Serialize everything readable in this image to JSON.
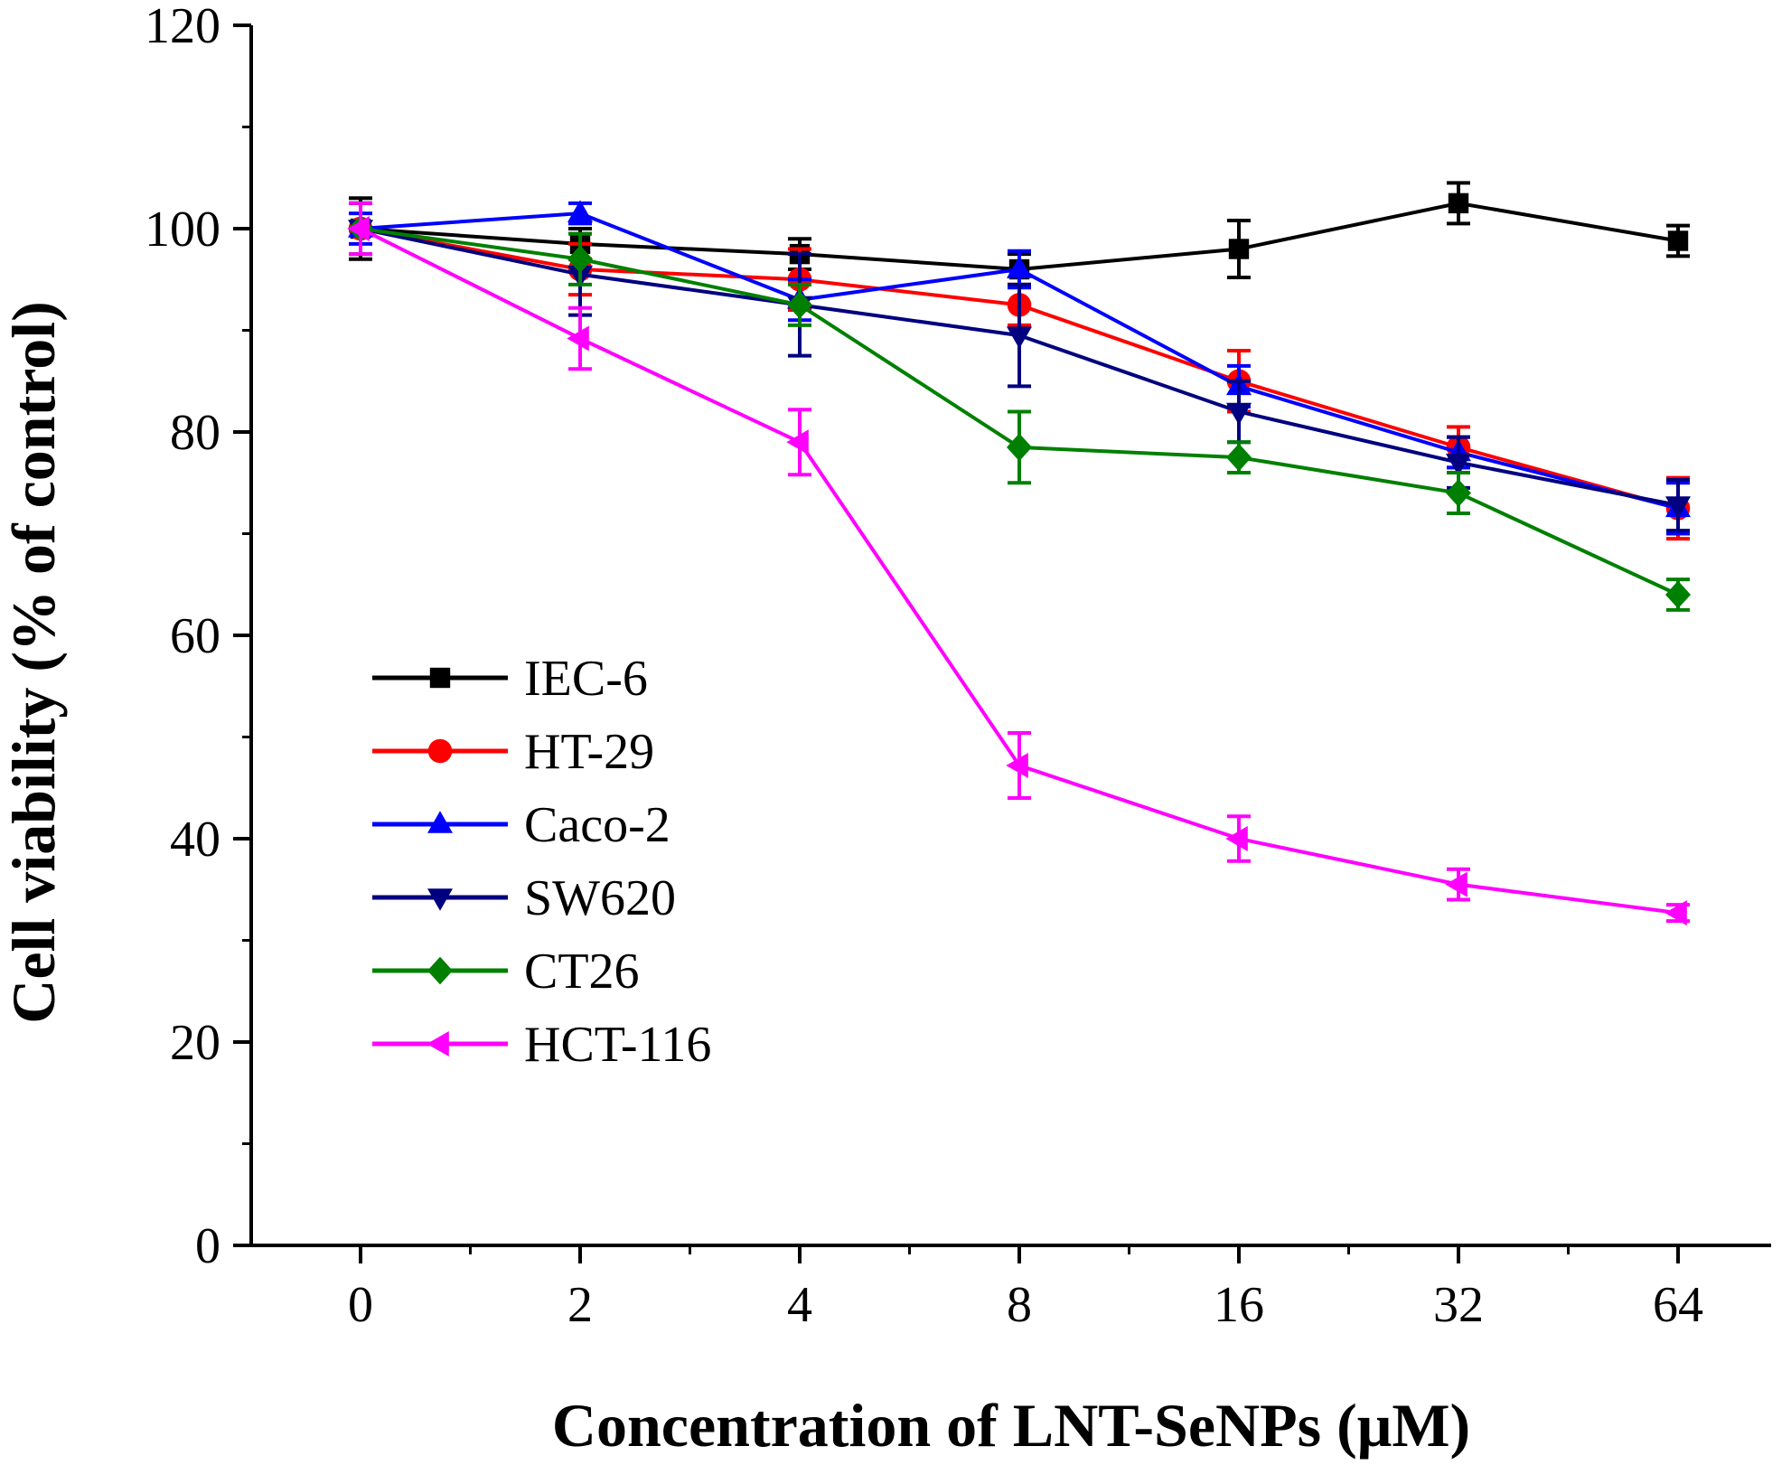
{
  "chart_data": {
    "type": "line",
    "title": "",
    "xlabel": "Concentration of LNT-SeNPs (μM)",
    "ylabel": "Cell viability (% of control)",
    "categories": [
      "0",
      "2",
      "4",
      "8",
      "16",
      "32",
      "64"
    ],
    "ylim": [
      0,
      120
    ],
    "yticks": [
      0,
      20,
      40,
      60,
      80,
      100,
      120
    ],
    "grid": false,
    "legend": "center-left",
    "series": [
      {
        "name": "IEC-6",
        "color": "#000000",
        "marker": "square",
        "values": [
          100.0,
          98.5,
          97.5,
          96.0,
          98.0,
          102.5,
          98.8
        ],
        "errors": [
          3.0,
          1.5,
          1.5,
          1.5,
          2.8,
          2.0,
          1.5
        ]
      },
      {
        "name": "HT-29",
        "color": "#ff0000",
        "marker": "circle",
        "values": [
          100.0,
          96.0,
          95.0,
          92.5,
          85.0,
          78.5,
          72.5
        ],
        "errors": [
          2.5,
          2.5,
          3.0,
          2.0,
          3.0,
          2.0,
          3.0
        ]
      },
      {
        "name": "Caco-2",
        "color": "#0000ff",
        "marker": "triangle-up",
        "values": [
          100.0,
          101.5,
          93.0,
          96.0,
          84.5,
          78.0,
          72.5
        ],
        "errors": [
          1.5,
          1.0,
          2.0,
          1.8,
          2.0,
          1.5,
          2.5
        ]
      },
      {
        "name": "SW620",
        "color": "#000080",
        "marker": "triangle-down",
        "values": [
          100.0,
          95.5,
          92.5,
          89.5,
          82.0,
          77.0,
          72.8
        ],
        "errors": [
          2.5,
          4.0,
          5.0,
          5.0,
          3.0,
          2.5,
          2.5
        ]
      },
      {
        "name": "CT26",
        "color": "#008000",
        "marker": "diamond",
        "values": [
          100.0,
          97.0,
          92.5,
          78.5,
          77.5,
          74.0,
          64.0
        ],
        "errors": [
          2.5,
          2.5,
          2.0,
          3.5,
          1.5,
          2.0,
          1.5
        ]
      },
      {
        "name": "HCT-116",
        "color": "#ff00ff",
        "marker": "triangle-left",
        "values": [
          100.0,
          89.2,
          79.0,
          47.2,
          40.0,
          35.5,
          32.7
        ],
        "errors": [
          2.5,
          3.0,
          3.2,
          3.2,
          2.2,
          1.5,
          0.8
        ]
      }
    ]
  }
}
